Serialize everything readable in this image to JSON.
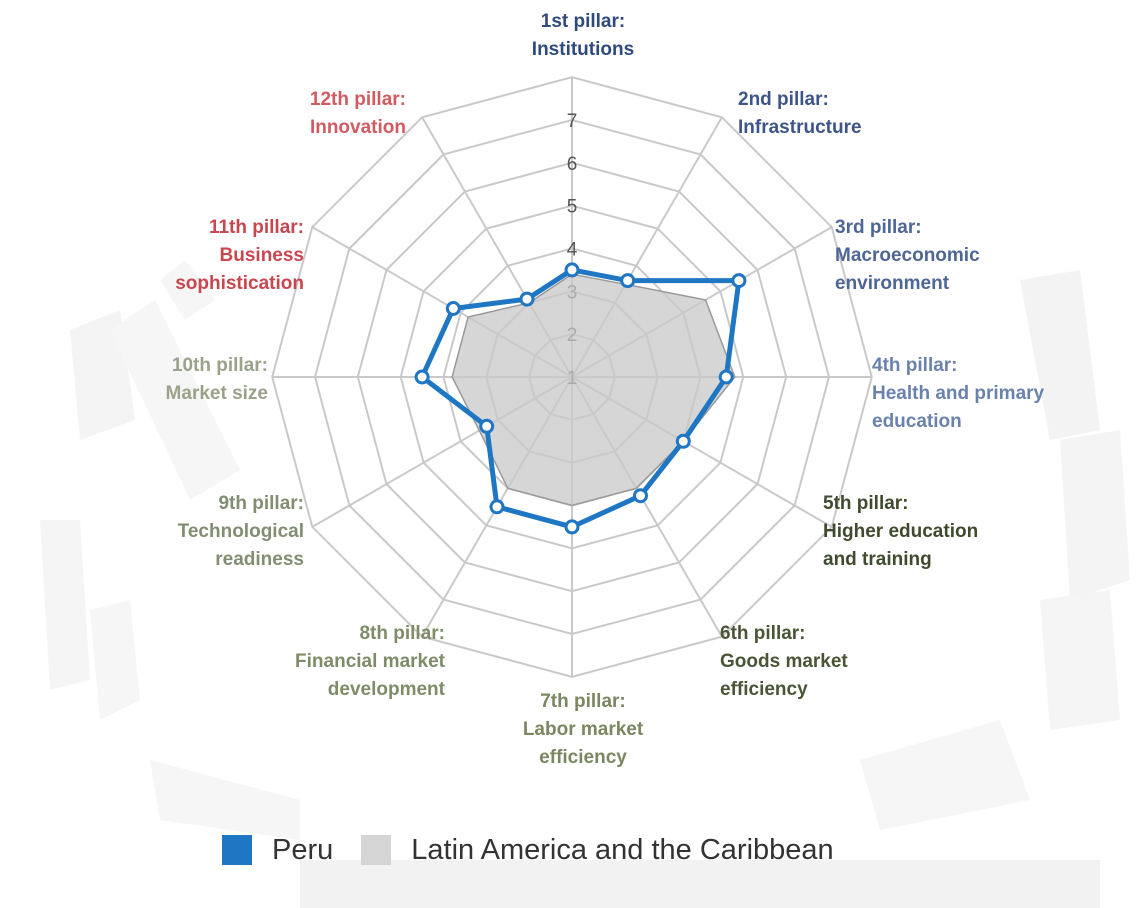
{
  "chart_data": {
    "type": "radar",
    "axes": [
      "1st pillar:\nInstitutions",
      "2nd pillar:\nInfrastructure",
      "3rd pillar:\nMacroeconomic\nenvironment",
      "4th pillar:\nHealth and primary\neducation",
      "5th pillar:\nHigher education\nand training",
      "6th pillar:\nGoods market\nefficiency",
      "7th pillar:\nLabor market\nefficiency",
      "8th pillar:\nFinancial market\ndevelopment",
      "9th pillar:\nTechnological\nreadiness",
      "10th pillar:\nMarket size",
      "11th pillar:\nBusiness\nsophistication",
      "12th pillar:\nInnovation"
    ],
    "axis_colors": [
      "#2f4a7d",
      "#3d5589",
      "#4e6695",
      "#6a82ad",
      "#3f4a2e",
      "#4a5537",
      "#7a8760",
      "#7e8d67",
      "#818e72",
      "#9aa28a",
      "#c8474f",
      "#d15b61"
    ],
    "rlim": [
      1,
      7
    ],
    "ticks": [
      1,
      2,
      3,
      4,
      5,
      6,
      7
    ],
    "grid": true,
    "legend_position": "bottom",
    "series": [
      {
        "name": "Peru",
        "values": [
          3.5,
          3.6,
          5.5,
          4.6,
          4.0,
          4.2,
          4.5,
          4.5,
          3.3,
          4.5,
          4.2,
          3.1
        ],
        "color": "#1f77c4"
      },
      {
        "name": "Latin America and the Caribbean",
        "values": [
          3.4,
          3.5,
          4.6,
          4.8,
          4.0,
          4.0,
          4.0,
          4.0,
          3.5,
          3.8,
          3.8,
          3.0
        ],
        "color": "#cccccc"
      }
    ]
  }
}
